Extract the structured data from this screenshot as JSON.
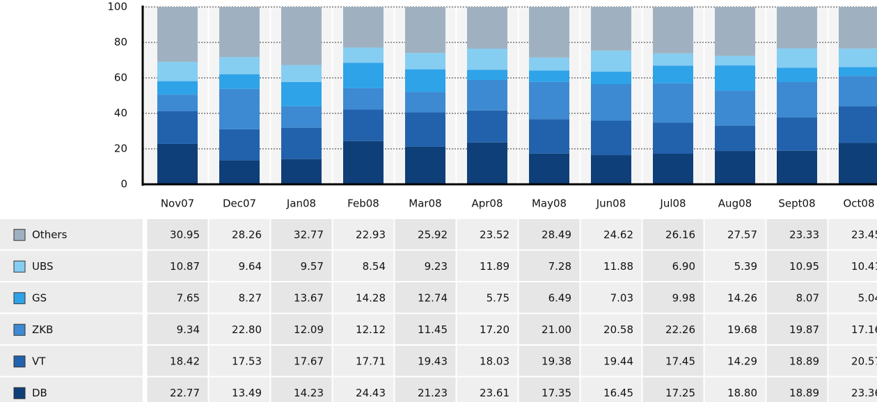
{
  "chart_data": {
    "type": "stacked_bar",
    "categories": [
      "Nov07",
      "Dec07",
      "Jan08",
      "Feb08",
      "Mar08",
      "Apr08",
      "May08",
      "Jun08",
      "Jul08",
      "Aug08",
      "Sept08",
      "Oct08"
    ],
    "ylim": [
      0,
      100
    ],
    "yticks": [
      0,
      20,
      40,
      60,
      80,
      100
    ],
    "grid": true,
    "series": [
      {
        "name": "Others",
        "color": "#9fb1c0",
        "values": [
          30.95,
          28.26,
          32.77,
          22.93,
          25.92,
          23.52,
          28.49,
          24.62,
          26.16,
          27.57,
          23.33,
          23.45
        ],
        "value_labels": [
          "30.95",
          "28.26",
          "32.77",
          "22.93",
          "25.92",
          "23.52",
          "28.49",
          "24.62",
          "26.16",
          "27.57",
          "23.33",
          "23.45"
        ]
      },
      {
        "name": "UBS",
        "color": "#86cdf2",
        "values": [
          10.87,
          9.64,
          9.57,
          8.54,
          9.23,
          11.89,
          7.28,
          11.88,
          6.9,
          5.39,
          10.95,
          10.41
        ],
        "value_labels": [
          "10.87",
          "9.64",
          "9.57",
          "8.54",
          "9.23",
          "11.89",
          "7.28",
          "11.88",
          "6.90",
          "5.39",
          "10.95",
          "10.41"
        ]
      },
      {
        "name": "GS",
        "color": "#2ea3e8",
        "values": [
          7.65,
          8.27,
          13.67,
          14.28,
          12.74,
          5.75,
          6.49,
          7.03,
          9.98,
          14.26,
          8.07,
          5.04
        ],
        "value_labels": [
          "7.65",
          "8.27",
          "13.67",
          "14.28",
          "12.74",
          "5.75",
          "6.49",
          "7.03",
          "9.98",
          "14.26",
          "8.07",
          "5.04"
        ]
      },
      {
        "name": "ZKB",
        "color": "#3d8ad2",
        "values": [
          9.34,
          22.8,
          12.09,
          12.12,
          11.45,
          17.2,
          21.0,
          20.58,
          22.26,
          19.68,
          19.87,
          17.16
        ],
        "value_labels": [
          "9.34",
          "22.80",
          "12.09",
          "12.12",
          "11.45",
          "17.20",
          "21.00",
          "20.58",
          "22.26",
          "19.68",
          "19.87",
          "17.16"
        ]
      },
      {
        "name": "VT",
        "color": "#2262ac",
        "values": [
          18.42,
          17.53,
          17.67,
          17.71,
          19.43,
          18.03,
          19.38,
          19.44,
          17.45,
          14.29,
          18.89,
          20.57
        ],
        "value_labels": [
          "18.42",
          "17.53",
          "17.67",
          "17.71",
          "19.43",
          "18.03",
          "19.38",
          "19.44",
          "17.45",
          "14.29",
          "18.89",
          "20.57"
        ]
      },
      {
        "name": "DB",
        "color": "#0f3f78",
        "values": [
          22.77,
          13.49,
          14.23,
          24.43,
          21.23,
          23.61,
          17.35,
          16.45,
          17.25,
          18.8,
          18.89,
          23.36
        ],
        "value_labels": [
          "22.77",
          "13.49",
          "14.23",
          "24.43",
          "21.23",
          "23.61",
          "17.35",
          "16.45",
          "17.25",
          "18.80",
          "18.89",
          "23.36"
        ]
      }
    ]
  }
}
